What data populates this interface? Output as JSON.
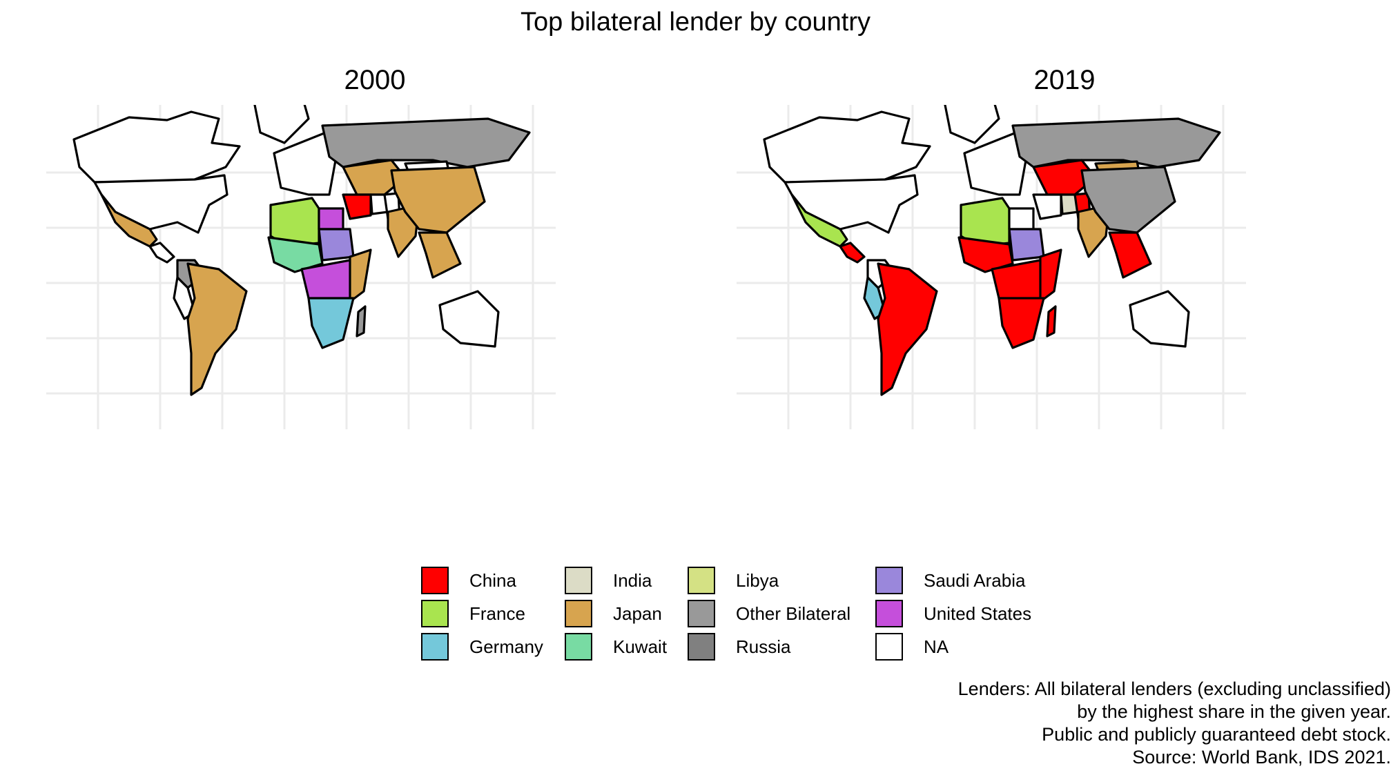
{
  "title": "Top bilateral lender by country",
  "panels": [
    {
      "year": "2000"
    },
    {
      "year": "2019"
    }
  ],
  "legend": {
    "items": [
      {
        "label": "China",
        "color": "#ff0000"
      },
      {
        "label": "France",
        "color": "#a9e44f"
      },
      {
        "label": "Germany",
        "color": "#74c8da"
      },
      {
        "label": "India",
        "color": "#dcdcc6"
      },
      {
        "label": "Japan",
        "color": "#d7a44f"
      },
      {
        "label": "Kuwait",
        "color": "#78dba3"
      },
      {
        "label": "Libya",
        "color": "#d4e184"
      },
      {
        "label": "Other Bilateral",
        "color": "#999999"
      },
      {
        "label": "Russia",
        "color": "#808080"
      },
      {
        "label": "Saudi Arabia",
        "color": "#9a87db"
      },
      {
        "label": "United States",
        "color": "#c54fdb"
      },
      {
        "label": "NA",
        "color": "#ffffff"
      }
    ]
  },
  "caption": [
    "Lenders: All bilateral lenders (excluding unclassified)",
    "by the highest share in the given year.",
    "Public and publicly guaranteed debt stock.",
    "Source: World Bank, IDS 2021."
  ],
  "regions_by_lender": {
    "2000": {
      "Russia": "Other Bilateral",
      "Central Asia": "Japan",
      "China": "Japan",
      "India": "Japan",
      "Iran": "China",
      "Mexico": "Japan",
      "South America": "Japan",
      "Northern Andes": "Other Bilateral",
      "North-West Africa": "France",
      "West Africa": "Kuwait",
      "Sudan": "Saudi Arabia",
      "Egypt": "United States",
      "Central Africa": "United States",
      "East Africa": "Japan",
      "Southern Africa": "Germany",
      "Southeast Asia": "Japan",
      "Madagascar": "Other Bilateral",
      "USA": "NA",
      "Canada": "NA",
      "Australia": "NA"
    },
    "2019": {
      "Russia": "Other Bilateral",
      "Central Asia": "China",
      "Mongolia": "Japan",
      "China": "Other Bilateral",
      "Pakistan": "China",
      "Afghanistan": "India",
      "India": "Japan",
      "Mexico": "France",
      "Central America": "China",
      "South America": "China",
      "Peru": "Germany",
      "North-West Africa": "France",
      "West Africa": "China",
      "Sudan": "Saudi Arabia",
      "Central Africa": "China",
      "East Africa": "China",
      "Southern Africa": "China",
      "Madagascar": "China",
      "Southeast Asia": "China",
      "USA": "NA",
      "Canada": "NA",
      "Australia": "NA"
    }
  }
}
